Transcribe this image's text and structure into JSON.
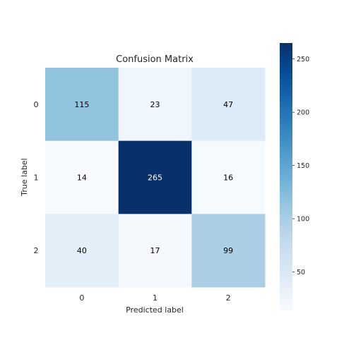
{
  "chart_data": {
    "type": "heatmap",
    "title": "Confusion Matrix",
    "xlabel": "Predicted label",
    "ylabel": "True label",
    "x_categories": [
      "0",
      "1",
      "2"
    ],
    "y_categories": [
      "0",
      "1",
      "2"
    ],
    "matrix": [
      [
        115,
        23,
        47
      ],
      [
        14,
        265,
        16
      ],
      [
        40,
        17,
        99
      ]
    ],
    "colorscale": "Blues",
    "colorbar": {
      "min": 14,
      "max": 265,
      "ticks": [
        50,
        100,
        150,
        200,
        250
      ]
    },
    "grid": false
  }
}
